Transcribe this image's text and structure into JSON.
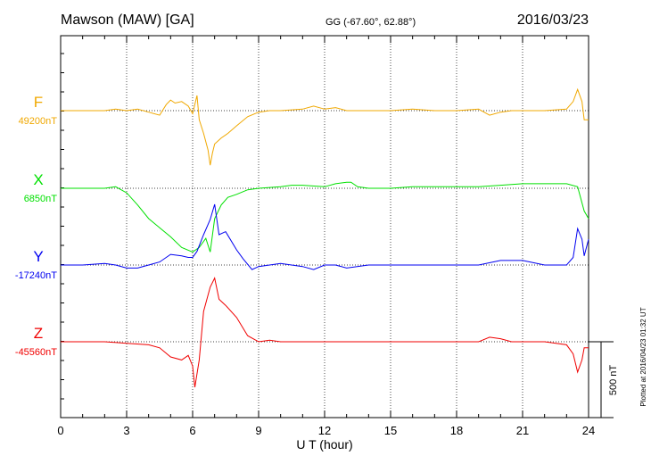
{
  "header": {
    "station": "Mawson (MAW)  [GA]",
    "coords": "GG (-67.60°,  62.88°)",
    "date": "2016/03/23"
  },
  "footer_note": "Plotted at 2016/04/23 01:32 UT",
  "scale_label": "500 nT",
  "chart_data": {
    "type": "line",
    "title": "Mawson (MAW)  [GA]",
    "xlabel": "U T (hour)",
    "ylabel": "",
    "xlim": [
      0,
      24
    ],
    "xticks": [
      "0",
      "3",
      "6",
      "9",
      "12",
      "15",
      "18",
      "21",
      "24"
    ],
    "grid": true,
    "scale_bar_nT": 500,
    "series": [
      {
        "name": "F",
        "baseline_label": "49200nT",
        "color": "#f0a800",
        "points": [
          [
            0,
            0
          ],
          [
            1,
            0
          ],
          [
            2,
            0
          ],
          [
            2.5,
            10
          ],
          [
            3,
            0
          ],
          [
            3.5,
            10
          ],
          [
            4,
            -10
          ],
          [
            4.5,
            -30
          ],
          [
            4.8,
            40
          ],
          [
            5,
            70
          ],
          [
            5.2,
            50
          ],
          [
            5.5,
            60
          ],
          [
            5.8,
            30
          ],
          [
            6,
            -20
          ],
          [
            6.2,
            100
          ],
          [
            6.3,
            -60
          ],
          [
            6.5,
            -150
          ],
          [
            6.7,
            -260
          ],
          [
            6.8,
            -360
          ],
          [
            6.9,
            -280
          ],
          [
            7,
            -220
          ],
          [
            7.3,
            -180
          ],
          [
            7.6,
            -150
          ],
          [
            8,
            -100
          ],
          [
            8.5,
            -40
          ],
          [
            9,
            -10
          ],
          [
            9.5,
            0
          ],
          [
            10,
            0
          ],
          [
            11,
            10
          ],
          [
            11.5,
            30
          ],
          [
            12,
            10
          ],
          [
            12.5,
            20
          ],
          [
            13,
            0
          ],
          [
            14,
            0
          ],
          [
            15,
            0
          ],
          [
            16,
            10
          ],
          [
            17,
            0
          ],
          [
            18,
            0
          ],
          [
            19,
            10
          ],
          [
            19.5,
            -30
          ],
          [
            20,
            -10
          ],
          [
            20.5,
            0
          ],
          [
            21,
            0
          ],
          [
            22,
            0
          ],
          [
            23,
            10
          ],
          [
            23.3,
            60
          ],
          [
            23.5,
            140
          ],
          [
            23.7,
            60
          ],
          [
            23.8,
            -60
          ],
          [
            24,
            -60
          ]
        ]
      },
      {
        "name": "X",
        "baseline_label": "6850nT",
        "color": "#00e000",
        "points": [
          [
            0,
            0
          ],
          [
            1,
            0
          ],
          [
            2,
            0
          ],
          [
            2.5,
            10
          ],
          [
            3,
            -30
          ],
          [
            3.5,
            -110
          ],
          [
            4,
            -200
          ],
          [
            4.5,
            -260
          ],
          [
            5,
            -320
          ],
          [
            5.5,
            -390
          ],
          [
            6,
            -420
          ],
          [
            6.3,
            -390
          ],
          [
            6.6,
            -330
          ],
          [
            6.8,
            -420
          ],
          [
            7,
            -200
          ],
          [
            7.3,
            -110
          ],
          [
            7.6,
            -60
          ],
          [
            8,
            -40
          ],
          [
            8.5,
            -10
          ],
          [
            9,
            0
          ],
          [
            10,
            10
          ],
          [
            10.5,
            20
          ],
          [
            11,
            20
          ],
          [
            12,
            10
          ],
          [
            12.5,
            30
          ],
          [
            13,
            40
          ],
          [
            13.2,
            40
          ],
          [
            13.5,
            10
          ],
          [
            14,
            0
          ],
          [
            15,
            0
          ],
          [
            16,
            10
          ],
          [
            17,
            10
          ],
          [
            18,
            10
          ],
          [
            19,
            10
          ],
          [
            20,
            20
          ],
          [
            21,
            30
          ],
          [
            22,
            30
          ],
          [
            23,
            30
          ],
          [
            23.5,
            10
          ],
          [
            23.8,
            -150
          ],
          [
            24,
            -200
          ]
        ]
      },
      {
        "name": "Y",
        "baseline_label": "-17240nT",
        "color": "#0000f0",
        "points": [
          [
            0,
            0
          ],
          [
            1,
            0
          ],
          [
            2,
            10
          ],
          [
            2.5,
            0
          ],
          [
            3,
            -20
          ],
          [
            3.5,
            -20
          ],
          [
            4,
            0
          ],
          [
            4.5,
            20
          ],
          [
            5,
            70
          ],
          [
            5.5,
            60
          ],
          [
            5.8,
            50
          ],
          [
            6,
            50
          ],
          [
            6.2,
            90
          ],
          [
            6.5,
            200
          ],
          [
            6.8,
            300
          ],
          [
            7,
            400
          ],
          [
            7.2,
            200
          ],
          [
            7.5,
            220
          ],
          [
            8,
            100
          ],
          [
            8.3,
            40
          ],
          [
            8.7,
            -30
          ],
          [
            9,
            -10
          ],
          [
            9.5,
            0
          ],
          [
            10,
            10
          ],
          [
            11,
            -10
          ],
          [
            11.5,
            -30
          ],
          [
            12,
            0
          ],
          [
            12.5,
            0
          ],
          [
            13,
            -20
          ],
          [
            14,
            0
          ],
          [
            15,
            0
          ],
          [
            16,
            0
          ],
          [
            17,
            0
          ],
          [
            18,
            0
          ],
          [
            19,
            0
          ],
          [
            20,
            30
          ],
          [
            21,
            30
          ],
          [
            22,
            0
          ],
          [
            23,
            0
          ],
          [
            23.3,
            50
          ],
          [
            23.5,
            240
          ],
          [
            23.7,
            170
          ],
          [
            23.8,
            60
          ],
          [
            24,
            170
          ]
        ]
      },
      {
        "name": "Z",
        "baseline_label": "-45560nT",
        "color": "#f00000",
        "points": [
          [
            0,
            0
          ],
          [
            1,
            0
          ],
          [
            2,
            0
          ],
          [
            3,
            -10
          ],
          [
            4,
            -20
          ],
          [
            4.5,
            -40
          ],
          [
            5,
            -100
          ],
          [
            5.5,
            -120
          ],
          [
            5.8,
            -90
          ],
          [
            6,
            -160
          ],
          [
            6.1,
            -300
          ],
          [
            6.3,
            -120
          ],
          [
            6.5,
            200
          ],
          [
            6.8,
            360
          ],
          [
            7,
            420
          ],
          [
            7.2,
            280
          ],
          [
            7.5,
            240
          ],
          [
            8,
            160
          ],
          [
            8.5,
            40
          ],
          [
            9,
            0
          ],
          [
            9.5,
            10
          ],
          [
            10,
            0
          ],
          [
            11,
            0
          ],
          [
            12,
            0
          ],
          [
            13,
            0
          ],
          [
            14,
            0
          ],
          [
            15,
            0
          ],
          [
            16,
            0
          ],
          [
            17,
            0
          ],
          [
            18,
            0
          ],
          [
            19,
            0
          ],
          [
            19.5,
            30
          ],
          [
            20,
            20
          ],
          [
            20.5,
            0
          ],
          [
            21,
            0
          ],
          [
            22,
            0
          ],
          [
            23,
            -20
          ],
          [
            23.3,
            -80
          ],
          [
            23.5,
            -200
          ],
          [
            23.7,
            -120
          ],
          [
            23.8,
            -40
          ],
          [
            24,
            -40
          ]
        ]
      }
    ]
  }
}
